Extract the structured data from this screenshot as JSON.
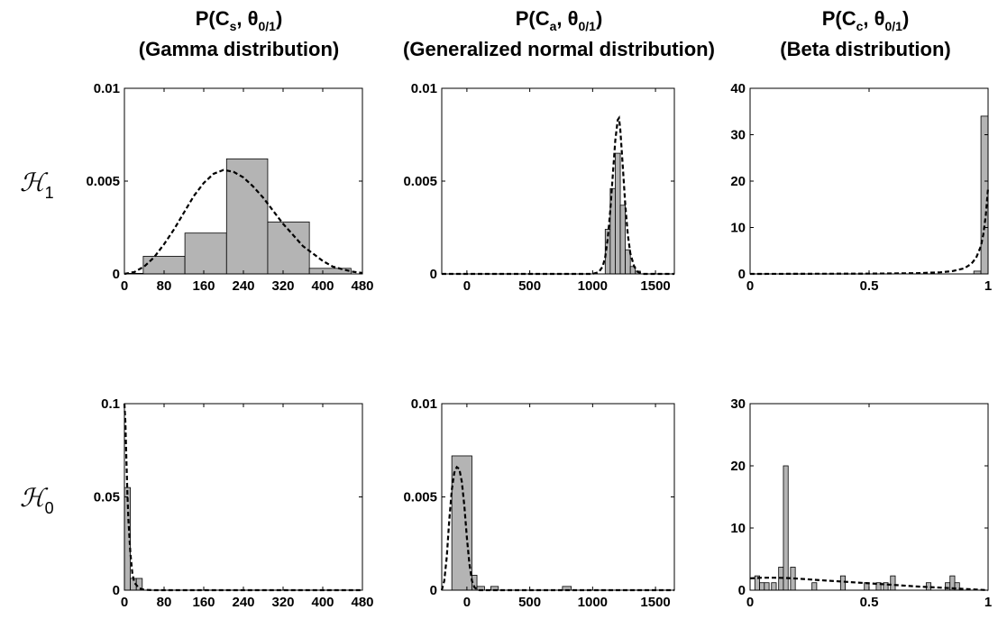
{
  "colors": {
    "bar": "#b4b4b4",
    "edge": "#000000",
    "curve": "#000000"
  },
  "columns": [
    {
      "title_prefix": "P(C",
      "title_sub": "s",
      "title_mid": ", θ",
      "title_sub2": "0/1",
      "title_suffix": ")",
      "distribution": "(Gamma distribution)"
    },
    {
      "title_prefix": "P(C",
      "title_sub": "a",
      "title_mid": ", θ",
      "title_sub2": "0/1",
      "title_suffix": ")",
      "distribution": "(Generalized normal distribution)"
    },
    {
      "title_prefix": "P(C",
      "title_sub": "c",
      "title_mid": ", θ",
      "title_sub2": "0/1",
      "title_suffix": ")",
      "distribution": "(Beta distribution)"
    }
  ],
  "rows": [
    {
      "label": "ℋ",
      "label_sub": "1"
    },
    {
      "label": "ℋ",
      "label_sub": "0"
    }
  ],
  "chart_data": [
    {
      "type": "bar",
      "row": "H1",
      "col": "Gamma",
      "xlim": [
        0,
        480
      ],
      "ylim": [
        0,
        0.01
      ],
      "xticks": [
        0,
        80,
        160,
        240,
        320,
        400,
        480
      ],
      "xticklabels": [
        "0",
        "80",
        "160",
        "240",
        "320",
        "400",
        "480"
      ],
      "yticks": [
        0,
        0.005,
        0.01
      ],
      "yticklabels": [
        "0",
        "0.005",
        "0.01"
      ],
      "bars": [
        {
          "x0": 0,
          "x1": 38,
          "y": 3e-05
        },
        {
          "x0": 38,
          "x1": 122,
          "y": 0.00095
        },
        {
          "x0": 122,
          "x1": 206,
          "y": 0.0022
        },
        {
          "x0": 206,
          "x1": 289,
          "y": 0.0062
        },
        {
          "x0": 289,
          "x1": 373,
          "y": 0.0028
        },
        {
          "x0": 373,
          "x1": 457,
          "y": 0.0003
        }
      ],
      "curve": {
        "x": [
          0,
          20,
          40,
          60,
          80,
          100,
          120,
          140,
          160,
          180,
          200,
          220,
          240,
          260,
          280,
          300,
          320,
          340,
          360,
          380,
          400,
          420,
          440,
          460,
          480
        ],
        "y": [
          0,
          0.0001,
          0.0004,
          0.0009,
          0.0016,
          0.0024,
          0.0033,
          0.0042,
          0.0049,
          0.0054,
          0.0056,
          0.0055,
          0.0052,
          0.0047,
          0.0041,
          0.0034,
          0.0027,
          0.0021,
          0.0015,
          0.0011,
          0.0007,
          0.0004,
          0.00025,
          0.00012,
          5e-05
        ]
      }
    },
    {
      "type": "bar",
      "row": "H1",
      "col": "Generalized normal",
      "xlim": [
        -200,
        1650
      ],
      "ylim": [
        0,
        0.01
      ],
      "xticks": [
        0,
        500,
        1000,
        1500
      ],
      "xticklabels": [
        "0",
        "500",
        "1000",
        "1500"
      ],
      "yticks": [
        0,
        0.005,
        0.01
      ],
      "yticklabels": [
        "0",
        "0.005",
        "0.01"
      ],
      "bars": [
        {
          "x0": 1100,
          "x1": 1140,
          "y": 0.0024
        },
        {
          "x0": 1140,
          "x1": 1180,
          "y": 0.0046
        },
        {
          "x0": 1180,
          "x1": 1220,
          "y": 0.0065
        },
        {
          "x0": 1220,
          "x1": 1260,
          "y": 0.0037
        },
        {
          "x0": 1260,
          "x1": 1300,
          "y": 0.0013
        },
        {
          "x0": 1300,
          "x1": 1340,
          "y": 0.0004
        },
        {
          "x0": 1340,
          "x1": 1380,
          "y": 0.00015
        }
      ],
      "curve": {
        "x": [
          -200,
          1000,
          1050,
          1080,
          1100,
          1120,
          1140,
          1160,
          1180,
          1200,
          1210,
          1220,
          1240,
          1260,
          1280,
          1300,
          1330,
          1360,
          1400,
          1650
        ],
        "y": [
          0,
          0,
          0.0001,
          0.0004,
          0.0009,
          0.0019,
          0.0034,
          0.0053,
          0.0072,
          0.0083,
          0.0084,
          0.0078,
          0.0058,
          0.0037,
          0.0021,
          0.0011,
          0.0004,
          0.0001,
          0,
          0
        ]
      }
    },
    {
      "type": "bar",
      "row": "H1",
      "col": "Beta",
      "xlim": [
        0,
        1
      ],
      "ylim": [
        0,
        40
      ],
      "xticks": [
        0,
        0.5,
        1
      ],
      "xticklabels": [
        "0",
        "0.5",
        "1"
      ],
      "yticks": [
        0,
        10,
        20,
        30,
        40
      ],
      "yticklabels": [
        "0",
        "10",
        "20",
        "30",
        "40"
      ],
      "bars": [
        {
          "x0": 0.94,
          "x1": 0.97,
          "y": 0.6
        },
        {
          "x0": 0.97,
          "x1": 1.0,
          "y": 34
        }
      ],
      "curve": {
        "x": [
          0,
          0.5,
          0.7,
          0.8,
          0.85,
          0.9,
          0.93,
          0.95,
          0.97,
          0.98,
          0.99,
          1.0
        ],
        "y": [
          0,
          0.05,
          0.15,
          0.35,
          0.6,
          1.2,
          2.2,
          3.5,
          6.0,
          8.5,
          12.5,
          18.5
        ]
      }
    },
    {
      "type": "bar",
      "row": "H0",
      "col": "Gamma",
      "xlim": [
        0,
        480
      ],
      "ylim": [
        0,
        0.1
      ],
      "xticks": [
        0,
        80,
        160,
        240,
        320,
        400,
        480
      ],
      "xticklabels": [
        "0",
        "80",
        "160",
        "240",
        "320",
        "400",
        "480"
      ],
      "yticks": [
        0,
        0.05,
        0.1
      ],
      "yticklabels": [
        "0",
        "0.05",
        "0.1"
      ],
      "bars": [
        {
          "x0": 0,
          "x1": 12,
          "y": 0.055
        },
        {
          "x0": 12,
          "x1": 24,
          "y": 0.0063
        },
        {
          "x0": 24,
          "x1": 36,
          "y": 0.0063
        }
      ],
      "curve": {
        "x": [
          0,
          2,
          4,
          6,
          8,
          12,
          16,
          20,
          30,
          40,
          60,
          480
        ],
        "y": [
          0.1,
          0.09,
          0.07,
          0.052,
          0.038,
          0.02,
          0.009,
          0.004,
          0.001,
          0.0002,
          0,
          0
        ]
      }
    },
    {
      "type": "bar",
      "row": "H0",
      "col": "Generalized normal",
      "xlim": [
        -200,
        1650
      ],
      "ylim": [
        0,
        0.01
      ],
      "xticks": [
        0,
        500,
        1000,
        1500
      ],
      "xticklabels": [
        "0",
        "500",
        "1000",
        "1500"
      ],
      "yticks": [
        0,
        0.005,
        0.01
      ],
      "yticklabels": [
        "0",
        "0.005",
        "0.01"
      ],
      "bars": [
        {
          "x0": -120,
          "x1": 40,
          "y": 0.0072
        },
        {
          "x0": 40,
          "x1": 80,
          "y": 0.0008
        },
        {
          "x0": 80,
          "x1": 140,
          "y": 0.0002
        },
        {
          "x0": 190,
          "x1": 250,
          "y": 0.0002
        },
        {
          "x0": 760,
          "x1": 830,
          "y": 0.0002
        }
      ],
      "curve": {
        "x": [
          -200,
          -180,
          -160,
          -140,
          -120,
          -100,
          -80,
          -60,
          -40,
          -20,
          0,
          20,
          40,
          60,
          80,
          100,
          150,
          200,
          1650
        ],
        "y": [
          0,
          0.0005,
          0.0018,
          0.0038,
          0.0054,
          0.0063,
          0.0066,
          0.0065,
          0.0058,
          0.0045,
          0.0028,
          0.0014,
          0.0005,
          0.00015,
          5e-05,
          0,
          0,
          0,
          0
        ]
      }
    },
    {
      "type": "bar",
      "row": "H0",
      "col": "Beta",
      "xlim": [
        0,
        1
      ],
      "ylim": [
        0,
        30
      ],
      "xticks": [
        0,
        0.5,
        1
      ],
      "xticklabels": [
        "0",
        "0.5",
        "1"
      ],
      "yticks": [
        0,
        10,
        20,
        30
      ],
      "yticklabels": [
        "0",
        "10",
        "20",
        "30"
      ],
      "bars": [
        {
          "x0": 0.02,
          "x1": 0.04,
          "y": 2.3
        },
        {
          "x0": 0.04,
          "x1": 0.06,
          "y": 1.2
        },
        {
          "x0": 0.06,
          "x1": 0.08,
          "y": 1.2
        },
        {
          "x0": 0.09,
          "x1": 0.11,
          "y": 1.2
        },
        {
          "x0": 0.12,
          "x1": 0.14,
          "y": 3.7
        },
        {
          "x0": 0.14,
          "x1": 0.16,
          "y": 20
        },
        {
          "x0": 0.17,
          "x1": 0.19,
          "y": 3.7
        },
        {
          "x0": 0.26,
          "x1": 0.28,
          "y": 1.2
        },
        {
          "x0": 0.38,
          "x1": 0.4,
          "y": 2.3
        },
        {
          "x0": 0.48,
          "x1": 0.5,
          "y": 1.2
        },
        {
          "x0": 0.53,
          "x1": 0.55,
          "y": 1.2
        },
        {
          "x0": 0.56,
          "x1": 0.58,
          "y": 1.2
        },
        {
          "x0": 0.59,
          "x1": 0.61,
          "y": 2.3
        },
        {
          "x0": 0.74,
          "x1": 0.76,
          "y": 1.2
        },
        {
          "x0": 0.82,
          "x1": 0.84,
          "y": 1.2
        },
        {
          "x0": 0.84,
          "x1": 0.86,
          "y": 2.3
        },
        {
          "x0": 0.86,
          "x1": 0.88,
          "y": 1.2
        }
      ],
      "curve": {
        "x": [
          0,
          0.05,
          0.1,
          0.15,
          0.2,
          0.3,
          0.4,
          0.5,
          0.6,
          0.7,
          0.8,
          0.9,
          0.95,
          1.0
        ],
        "y": [
          1.9,
          2.0,
          2.0,
          1.95,
          1.85,
          1.6,
          1.35,
          1.1,
          0.85,
          0.6,
          0.4,
          0.2,
          0.1,
          0
        ]
      }
    }
  ]
}
